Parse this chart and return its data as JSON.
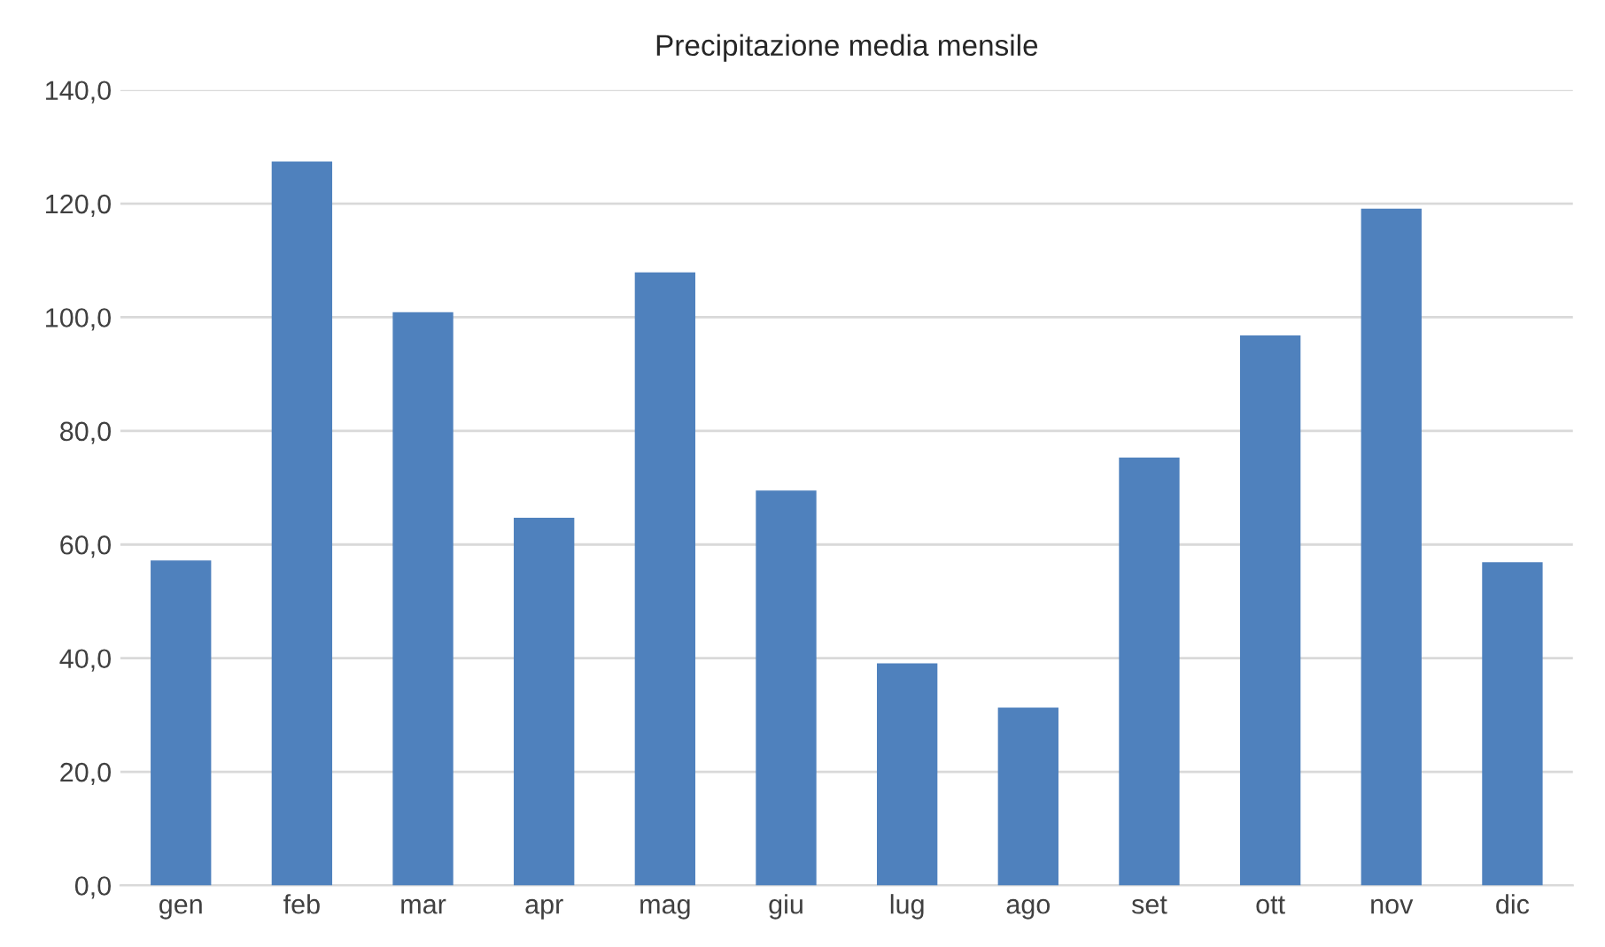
{
  "chart_data": {
    "type": "bar",
    "title": "Precipitazione media mensile",
    "categories": [
      "gen",
      "feb",
      "mar",
      "apr",
      "mag",
      "giu",
      "lug",
      "ago",
      "set",
      "ott",
      "nov",
      "dic"
    ],
    "values": [
      57.2,
      127.4,
      100.9,
      64.7,
      107.9,
      69.5,
      39.1,
      31.3,
      75.3,
      96.8,
      119.1,
      56.9
    ],
    "color": "#4f81bd",
    "ylim": [
      0,
      140
    ],
    "yticks": [
      {
        "value": 0,
        "label": "0,0"
      },
      {
        "value": 20,
        "label": "20,0"
      },
      {
        "value": 40,
        "label": "40,0"
      },
      {
        "value": 60,
        "label": "60,0"
      },
      {
        "value": 80,
        "label": "80,0"
      },
      {
        "value": 100,
        "label": "100,0"
      },
      {
        "value": 120,
        "label": "120,0"
      },
      {
        "value": 140,
        "label": "140,0"
      }
    ],
    "grid": "y"
  }
}
